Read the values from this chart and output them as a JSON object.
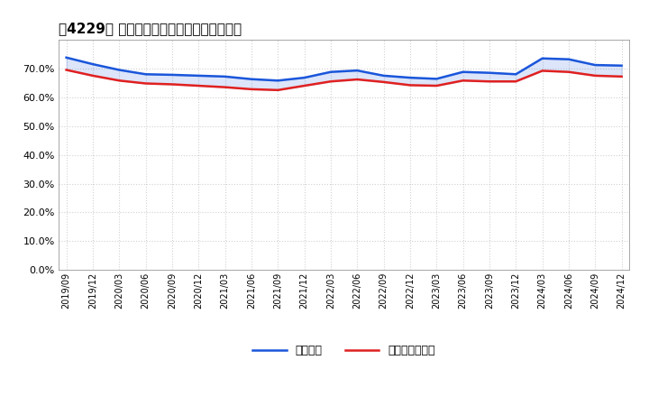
{
  "title": "［4229］ 固定比率、固定長期適合率の推移",
  "x_labels": [
    "2019/09",
    "2019/12",
    "2020/03",
    "2020/06",
    "2020/09",
    "2020/12",
    "2021/03",
    "2021/06",
    "2021/09",
    "2021/12",
    "2022/03",
    "2022/06",
    "2022/09",
    "2022/12",
    "2023/03",
    "2023/06",
    "2023/09",
    "2023/12",
    "2024/03",
    "2024/06",
    "2024/09",
    "2024/12"
  ],
  "kotei_ratio": [
    73.8,
    71.5,
    69.5,
    68.0,
    67.8,
    67.5,
    67.2,
    66.3,
    65.8,
    66.8,
    68.8,
    69.3,
    67.5,
    66.8,
    66.4,
    68.8,
    68.5,
    68.0,
    73.5,
    73.2,
    71.2,
    71.0
  ],
  "kotei_long_ratio": [
    69.5,
    67.5,
    65.8,
    64.8,
    64.5,
    64.0,
    63.5,
    62.8,
    62.5,
    64.0,
    65.5,
    66.2,
    65.3,
    64.2,
    64.0,
    65.8,
    65.5,
    65.5,
    69.2,
    68.8,
    67.5,
    67.2
  ],
  "line_color_blue": "#1a56db",
  "line_color_red": "#e02020",
  "background_color": "#ffffff",
  "grid_color": "#cccccc",
  "ylim": [
    0,
    80
  ],
  "yticks": [
    0,
    10,
    20,
    30,
    40,
    50,
    60,
    70
  ],
  "legend_label_blue": "固定比率",
  "legend_label_red": "固定長期適合率"
}
